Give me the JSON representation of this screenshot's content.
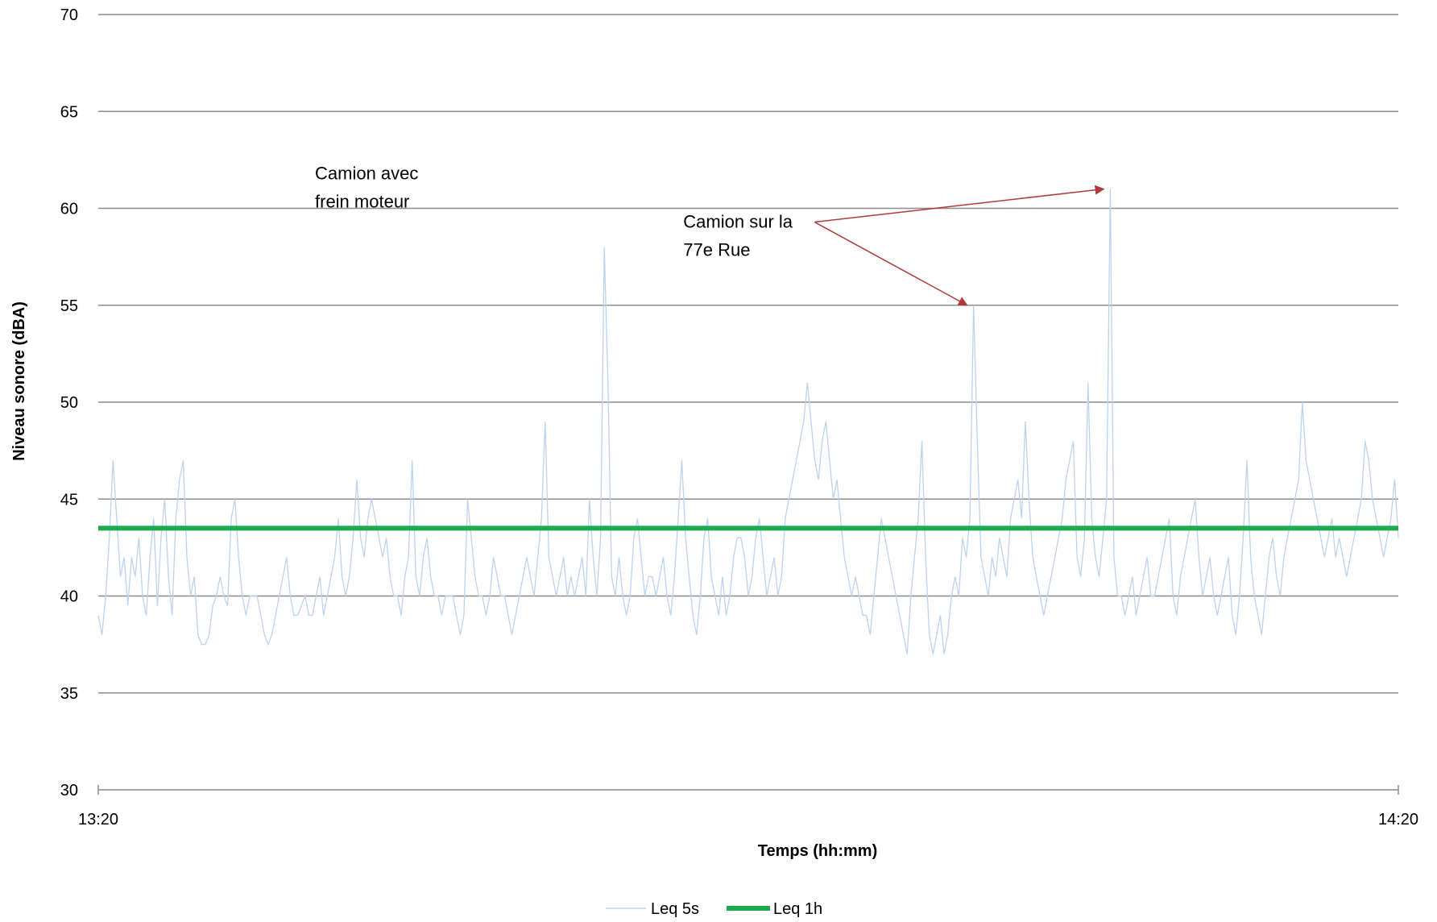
{
  "chart_data": {
    "type": "line",
    "xlabel": "Temps (hh:mm)",
    "ylabel": "Niveau sonore (dBA)",
    "ylim": [
      30,
      70
    ],
    "yticks": [
      "30",
      "35",
      "40",
      "45",
      "50",
      "55",
      "60",
      "65",
      "70"
    ],
    "xlim": [
      "13:20",
      "14:20"
    ],
    "xticks": [
      "13:20",
      "14:20"
    ],
    "grid": "horizontal",
    "legend_position": "bottom",
    "series": [
      {
        "name": "Leq 5s",
        "color": "#bcd3ee",
        "sample_interval_s": 5,
        "values": [
          39,
          38,
          40,
          43,
          47,
          44,
          41,
          42,
          39.5,
          42,
          41,
          43,
          40,
          39,
          42,
          44,
          39.5,
          43,
          45,
          41,
          39,
          44,
          46,
          47,
          42,
          40,
          41,
          38,
          37.5,
          37.5,
          38,
          39.5,
          40,
          41,
          40,
          39.5,
          44,
          45,
          42,
          40,
          39,
          40,
          40,
          40,
          39,
          38,
          37.5,
          38,
          39,
          40,
          41,
          42,
          40,
          39,
          39,
          39.5,
          40,
          39,
          39,
          40,
          41,
          39,
          40,
          41,
          42,
          44,
          41,
          40,
          41,
          43,
          46,
          43,
          42,
          44,
          45,
          44,
          43,
          42,
          43,
          41,
          40,
          40,
          39,
          41,
          42,
          47,
          41,
          40,
          42,
          43,
          41,
          40,
          40,
          39,
          40,
          40,
          40,
          39,
          38,
          39,
          45,
          43,
          41,
          40,
          40,
          39,
          40,
          42,
          41,
          40,
          40,
          39,
          38,
          39,
          40,
          41,
          42,
          41,
          40,
          42,
          44,
          49,
          42,
          41,
          40,
          41,
          42,
          40,
          41,
          40,
          41,
          42,
          40,
          45,
          42,
          40,
          43,
          58,
          51,
          41,
          40,
          42,
          40,
          39,
          40,
          43,
          44,
          42,
          40,
          41,
          41,
          40,
          41,
          42,
          40,
          39,
          41,
          44,
          47,
          43,
          41,
          39,
          38,
          40,
          43,
          44,
          41,
          40,
          39,
          41,
          39,
          40,
          42,
          43,
          43,
          42,
          40,
          41,
          43,
          44,
          42,
          40,
          41,
          42,
          40,
          41,
          44,
          45,
          46,
          47,
          48,
          49,
          51,
          49,
          47,
          46,
          48,
          49,
          47,
          45,
          46,
          44,
          42,
          41,
          40,
          41,
          40,
          39,
          39,
          38,
          40,
          42,
          44,
          43,
          42,
          41,
          40,
          39,
          38,
          37,
          40,
          42,
          44,
          48,
          42,
          38,
          37,
          38,
          39,
          37,
          38,
          40,
          41,
          40,
          43,
          42,
          44,
          55,
          48,
          42,
          41,
          40,
          42,
          41,
          43,
          42,
          41,
          44,
          45,
          46,
          44,
          49,
          45,
          42,
          41,
          40,
          39,
          40,
          41,
          42,
          43,
          44,
          46,
          47,
          48,
          42,
          41,
          43,
          51,
          44,
          42,
          41,
          43,
          45,
          61,
          42,
          40,
          40,
          39,
          40,
          41,
          39,
          40,
          41,
          42,
          40,
          40,
          41,
          42,
          43,
          44,
          40,
          39,
          41,
          42,
          43,
          44,
          45,
          42,
          40,
          41,
          42,
          40,
          39,
          40,
          41,
          42,
          39,
          38,
          40,
          43,
          47,
          42,
          40,
          39,
          38,
          40,
          42,
          43,
          41,
          40,
          42,
          43,
          44,
          45,
          46,
          50,
          47,
          46,
          45,
          44,
          43,
          42,
          43,
          44,
          42,
          43,
          42,
          41,
          42,
          43,
          44,
          45,
          48,
          47,
          45,
          44,
          43,
          42,
          43,
          44,
          46,
          43
        ]
      },
      {
        "name": "Leq 1h",
        "color": "#1faa50",
        "value": 43.5
      }
    ],
    "annotations": [
      {
        "line1": "Camion avec",
        "line2": "frein moteur",
        "x_time": "13:30",
        "y": 61.5
      },
      {
        "line1": "Camion sur la",
        "line2": " 77e Rue",
        "x_time": "13:47",
        "y": 59,
        "points_to": [
          55,
          61
        ]
      }
    ]
  }
}
